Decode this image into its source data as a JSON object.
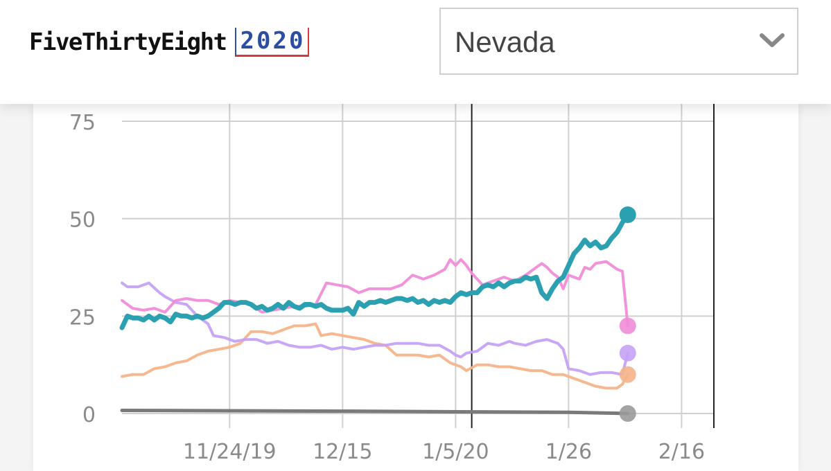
{
  "header": {
    "logo_text": "FiveThirtyEight",
    "logo_year": "2020",
    "state_selector": {
      "selected": "Nevada",
      "icon": "chevron-down-icon"
    }
  },
  "colors": {
    "teal": "#2aa0b0",
    "pink": "#f08cd8",
    "purple": "#c5a2f5",
    "orange": "#f5b48a",
    "gray": "#7a7a7a",
    "brand_blue": "#2b4ea3",
    "brand_red": "#d9363e"
  },
  "chart_data": {
    "type": "line",
    "title": "",
    "xlabel": "",
    "ylabel": "",
    "ylim": [
      0,
      75
    ],
    "y_ticks": [
      "0",
      "25",
      "50",
      "75"
    ],
    "x_tick_labels": [
      "11/24/19",
      "12/15",
      "1/5/20",
      "1/26",
      "2/16"
    ],
    "x_tick_dates": [
      "2019-11-24",
      "2019-12-15",
      "2020-01-05",
      "2020-01-26",
      "2020-02-16"
    ],
    "x_range": [
      "2019-11-04",
      "2020-02-22"
    ],
    "event_lines": [
      "2020-01-08",
      "2020-02-22"
    ],
    "grid": true,
    "series": [
      {
        "key": "teal",
        "points": [
          [
            "2019-11-04",
            22
          ],
          [
            "2019-11-05",
            25
          ],
          [
            "2019-11-06",
            24.5
          ],
          [
            "2019-11-07",
            24.5
          ],
          [
            "2019-11-08",
            24
          ],
          [
            "2019-11-09",
            25
          ],
          [
            "2019-11-10",
            24
          ],
          [
            "2019-11-11",
            25
          ],
          [
            "2019-11-12",
            24.5
          ],
          [
            "2019-11-13",
            23.5
          ],
          [
            "2019-11-14",
            25.5
          ],
          [
            "2019-11-15",
            25
          ],
          [
            "2019-11-16",
            25
          ],
          [
            "2019-11-17",
            24.5
          ],
          [
            "2019-11-18",
            25
          ],
          [
            "2019-11-19",
            24.5
          ],
          [
            "2019-11-20",
            25
          ],
          [
            "2019-11-21",
            26
          ],
          [
            "2019-11-22",
            27
          ],
          [
            "2019-11-23",
            28.5
          ],
          [
            "2019-11-24",
            28.5
          ],
          [
            "2019-11-25",
            28
          ],
          [
            "2019-11-26",
            28.5
          ],
          [
            "2019-11-27",
            28.5
          ],
          [
            "2019-11-28",
            28
          ],
          [
            "2019-11-29",
            27
          ],
          [
            "2019-11-30",
            27.5
          ],
          [
            "2019-12-01",
            26.5
          ],
          [
            "2019-12-02",
            27
          ],
          [
            "2019-12-03",
            28
          ],
          [
            "2019-12-04",
            27
          ],
          [
            "2019-12-05",
            28.5
          ],
          [
            "2019-12-06",
            27.5
          ],
          [
            "2019-12-07",
            27
          ],
          [
            "2019-12-08",
            28
          ],
          [
            "2019-12-09",
            28
          ],
          [
            "2019-12-10",
            27.5
          ],
          [
            "2019-12-11",
            28
          ],
          [
            "2019-12-12",
            27
          ],
          [
            "2019-12-13",
            26.5
          ],
          [
            "2019-12-14",
            26.5
          ],
          [
            "2019-12-15",
            26.5
          ],
          [
            "2019-12-16",
            27
          ],
          [
            "2019-12-17",
            25.5
          ],
          [
            "2019-12-18",
            28.5
          ],
          [
            "2019-12-19",
            27.5
          ],
          [
            "2019-12-20",
            28.5
          ],
          [
            "2019-12-21",
            28.5
          ],
          [
            "2019-12-22",
            29
          ],
          [
            "2019-12-23",
            28.5
          ],
          [
            "2019-12-24",
            29
          ],
          [
            "2019-12-25",
            29.5
          ],
          [
            "2019-12-26",
            29.5
          ],
          [
            "2019-12-27",
            29
          ],
          [
            "2019-12-28",
            29.5
          ],
          [
            "2019-12-29",
            28.5
          ],
          [
            "2019-12-30",
            29
          ],
          [
            "2019-12-31",
            28
          ],
          [
            "2020-01-01",
            29
          ],
          [
            "2020-01-02",
            28.5
          ],
          [
            "2020-01-03",
            29
          ],
          [
            "2020-01-04",
            28.5
          ],
          [
            "2020-01-05",
            30
          ],
          [
            "2020-01-06",
            31
          ],
          [
            "2020-01-07",
            30.5
          ],
          [
            "2020-01-08",
            31
          ],
          [
            "2020-01-09",
            31
          ],
          [
            "2020-01-10",
            32.5
          ],
          [
            "2020-01-11",
            33
          ],
          [
            "2020-01-12",
            32.5
          ],
          [
            "2020-01-13",
            33.5
          ],
          [
            "2020-01-14",
            32.5
          ],
          [
            "2020-01-15",
            33.5
          ],
          [
            "2020-01-16",
            34
          ],
          [
            "2020-01-17",
            34
          ],
          [
            "2020-01-18",
            35
          ],
          [
            "2020-01-19",
            34.5
          ],
          [
            "2020-01-20",
            35
          ],
          [
            "2020-01-21",
            31
          ],
          [
            "2020-01-22",
            29.5
          ],
          [
            "2020-01-23",
            32
          ],
          [
            "2020-01-24",
            34
          ],
          [
            "2020-01-25",
            35
          ],
          [
            "2020-01-26",
            38
          ],
          [
            "2020-01-27",
            41
          ],
          [
            "2020-01-28",
            42.5
          ],
          [
            "2020-01-29",
            44.5
          ],
          [
            "2020-01-30",
            43
          ],
          [
            "2020-01-31",
            44
          ],
          [
            "2020-02-01",
            42.5
          ],
          [
            "2020-02-02",
            43
          ],
          [
            "2020-02-03",
            45
          ],
          [
            "2020-02-04",
            46.5
          ],
          [
            "2020-02-05",
            49
          ],
          [
            "2020-02-06",
            51
          ]
        ]
      },
      {
        "key": "pink",
        "points": [
          [
            "2019-11-04",
            29
          ],
          [
            "2019-11-06",
            27
          ],
          [
            "2019-11-08",
            26.5
          ],
          [
            "2019-11-10",
            27
          ],
          [
            "2019-11-12",
            26
          ],
          [
            "2019-11-14",
            29
          ],
          [
            "2019-11-16",
            29.5
          ],
          [
            "2019-11-18",
            29
          ],
          [
            "2019-11-20",
            29
          ],
          [
            "2019-11-22",
            28
          ],
          [
            "2019-11-24",
            29
          ],
          [
            "2019-11-26",
            28.5
          ],
          [
            "2019-11-28",
            28
          ],
          [
            "2019-11-30",
            26
          ],
          [
            "2019-12-02",
            26.5
          ],
          [
            "2019-12-04",
            27
          ],
          [
            "2019-12-06",
            27.5
          ],
          [
            "2019-12-08",
            27.5
          ],
          [
            "2019-12-10",
            28
          ],
          [
            "2019-12-12",
            33.5
          ],
          [
            "2019-12-14",
            33
          ],
          [
            "2019-12-16",
            32.5
          ],
          [
            "2019-12-18",
            31
          ],
          [
            "2019-12-20",
            32
          ],
          [
            "2019-12-22",
            32
          ],
          [
            "2019-12-24",
            32
          ],
          [
            "2019-12-26",
            33
          ],
          [
            "2019-12-28",
            35.5
          ],
          [
            "2019-12-30",
            34.5
          ],
          [
            "2020-01-01",
            35.5
          ],
          [
            "2020-01-03",
            37
          ],
          [
            "2020-01-04",
            39.5
          ],
          [
            "2020-01-05",
            38
          ],
          [
            "2020-01-06",
            39.5
          ],
          [
            "2020-01-07",
            38
          ],
          [
            "2020-01-08",
            36
          ],
          [
            "2020-01-10",
            33
          ],
          [
            "2020-01-12",
            34
          ],
          [
            "2020-01-14",
            35
          ],
          [
            "2020-01-16",
            34
          ],
          [
            "2020-01-18",
            35.5
          ],
          [
            "2020-01-20",
            37.5
          ],
          [
            "2020-01-21",
            38.5
          ],
          [
            "2020-01-22",
            37.5
          ],
          [
            "2020-01-23",
            36
          ],
          [
            "2020-01-24",
            35
          ],
          [
            "2020-01-25",
            32
          ],
          [
            "2020-01-26",
            35.5
          ],
          [
            "2020-01-27",
            35
          ],
          [
            "2020-01-28",
            34.5
          ],
          [
            "2020-01-29",
            37.5
          ],
          [
            "2020-01-30",
            37
          ],
          [
            "2020-01-31",
            38.5
          ],
          [
            "2020-02-02",
            39
          ],
          [
            "2020-02-04",
            37
          ],
          [
            "2020-02-05",
            36.5
          ],
          [
            "2020-02-06",
            22.5
          ]
        ]
      },
      {
        "key": "purple",
        "points": [
          [
            "2019-11-04",
            33.5
          ],
          [
            "2019-11-05",
            32.5
          ],
          [
            "2019-11-07",
            32.5
          ],
          [
            "2019-11-09",
            33.5
          ],
          [
            "2019-11-11",
            31
          ],
          [
            "2019-11-12",
            30
          ],
          [
            "2019-11-14",
            28.5
          ],
          [
            "2019-11-16",
            28
          ],
          [
            "2019-11-18",
            25
          ],
          [
            "2019-11-20",
            23
          ],
          [
            "2019-11-21",
            20
          ],
          [
            "2019-11-23",
            19.5
          ],
          [
            "2019-11-25",
            18.5
          ],
          [
            "2019-11-27",
            19
          ],
          [
            "2019-11-29",
            19
          ],
          [
            "2019-12-01",
            18
          ],
          [
            "2019-12-03",
            18.5
          ],
          [
            "2019-12-05",
            17.5
          ],
          [
            "2019-12-07",
            17
          ],
          [
            "2019-12-09",
            17
          ],
          [
            "2019-12-11",
            17.5
          ],
          [
            "2019-12-13",
            16.5
          ],
          [
            "2019-12-15",
            17
          ],
          [
            "2019-12-17",
            16.5
          ],
          [
            "2019-12-19",
            17
          ],
          [
            "2019-12-21",
            17.5
          ],
          [
            "2019-12-23",
            17.5
          ],
          [
            "2019-12-25",
            18
          ],
          [
            "2019-12-27",
            18
          ],
          [
            "2019-12-29",
            18
          ],
          [
            "2019-12-31",
            17.5
          ],
          [
            "2020-01-02",
            17.5
          ],
          [
            "2020-01-04",
            16
          ],
          [
            "2020-01-05",
            15
          ],
          [
            "2020-01-06",
            14.5
          ],
          [
            "2020-01-07",
            15.5
          ],
          [
            "2020-01-09",
            16
          ],
          [
            "2020-01-11",
            18
          ],
          [
            "2020-01-13",
            17.5
          ],
          [
            "2020-01-15",
            18.5
          ],
          [
            "2020-01-16",
            18
          ],
          [
            "2020-01-18",
            17.5
          ],
          [
            "2020-01-20",
            18.5
          ],
          [
            "2020-01-22",
            19
          ],
          [
            "2020-01-24",
            18
          ],
          [
            "2020-01-25",
            16.5
          ],
          [
            "2020-01-26",
            11.5
          ],
          [
            "2020-01-28",
            11
          ],
          [
            "2020-01-30",
            10
          ],
          [
            "2020-02-01",
            10.5
          ],
          [
            "2020-02-03",
            10.5
          ],
          [
            "2020-02-05",
            10
          ],
          [
            "2020-02-06",
            15.5
          ]
        ]
      },
      {
        "key": "orange",
        "points": [
          [
            "2019-11-04",
            9.5
          ],
          [
            "2019-11-06",
            10
          ],
          [
            "2019-11-08",
            10
          ],
          [
            "2019-11-10",
            11.5
          ],
          [
            "2019-11-12",
            12
          ],
          [
            "2019-11-14",
            13
          ],
          [
            "2019-11-16",
            13.5
          ],
          [
            "2019-11-18",
            15
          ],
          [
            "2019-11-20",
            16
          ],
          [
            "2019-11-22",
            16.5
          ],
          [
            "2019-11-24",
            17
          ],
          [
            "2019-11-26",
            18
          ],
          [
            "2019-11-28",
            21
          ],
          [
            "2019-11-30",
            21
          ],
          [
            "2019-12-02",
            20.5
          ],
          [
            "2019-12-04",
            21.5
          ],
          [
            "2019-12-06",
            22.5
          ],
          [
            "2019-12-08",
            22.5
          ],
          [
            "2019-12-10",
            23
          ],
          [
            "2019-12-11",
            20
          ],
          [
            "2019-12-13",
            20.5
          ],
          [
            "2019-12-15",
            20
          ],
          [
            "2019-12-17",
            19.5
          ],
          [
            "2019-12-19",
            19
          ],
          [
            "2019-12-21",
            18
          ],
          [
            "2019-12-23",
            17.5
          ],
          [
            "2019-12-25",
            15
          ],
          [
            "2019-12-27",
            15
          ],
          [
            "2019-12-29",
            15
          ],
          [
            "2019-12-31",
            14.5
          ],
          [
            "2020-01-02",
            15
          ],
          [
            "2020-01-04",
            13
          ],
          [
            "2020-01-06",
            12
          ],
          [
            "2020-01-07",
            11
          ],
          [
            "2020-01-09",
            12.5
          ],
          [
            "2020-01-11",
            12.5
          ],
          [
            "2020-01-13",
            12
          ],
          [
            "2020-01-15",
            12
          ],
          [
            "2020-01-17",
            11.5
          ],
          [
            "2020-01-19",
            11
          ],
          [
            "2020-01-21",
            11
          ],
          [
            "2020-01-23",
            10
          ],
          [
            "2020-01-25",
            10
          ],
          [
            "2020-01-27",
            9
          ],
          [
            "2020-01-29",
            8
          ],
          [
            "2020-01-31",
            7
          ],
          [
            "2020-02-02",
            6.5
          ],
          [
            "2020-02-04",
            6.5
          ],
          [
            "2020-02-05",
            7.5
          ],
          [
            "2020-02-06",
            10
          ]
        ]
      },
      {
        "key": "gray",
        "points": [
          [
            "2019-11-04",
            0.8
          ],
          [
            "2019-12-15",
            0.6
          ],
          [
            "2020-01-26",
            0.3
          ],
          [
            "2020-02-06",
            0
          ]
        ]
      }
    ]
  }
}
